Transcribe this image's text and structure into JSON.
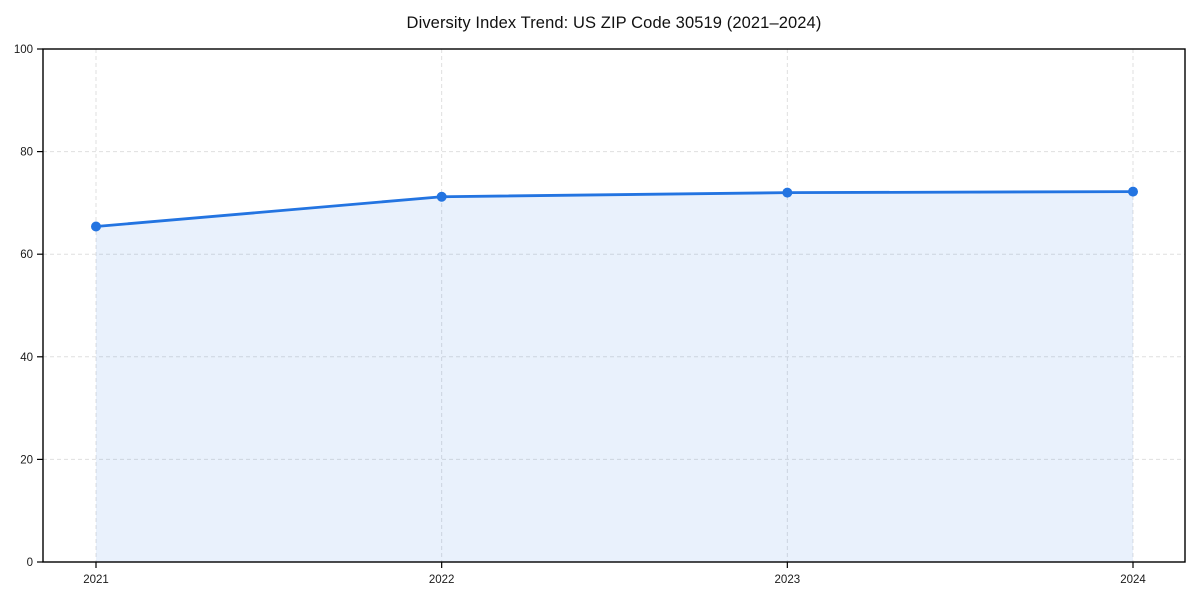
{
  "title": "Diversity Index Trend: US ZIP Code 30519 (2021–2024)",
  "colors": {
    "line": "#2374e1",
    "marker": "#2374e1",
    "area_fill": "rgba(36,116,229,0.10)",
    "grid": "#dfdfdf",
    "axis": "#000000",
    "text": "#1a1a1a",
    "background": "#ffffff"
  },
  "chart_data": {
    "type": "line",
    "title": "Diversity Index Trend: US ZIP Code 30519 (2021–2024)",
    "series_name": "Diversity Index",
    "categories": [
      "2021",
      "2022",
      "2023",
      "2024"
    ],
    "values": [
      65.4,
      71.2,
      72.0,
      72.2
    ],
    "xlabel": "",
    "ylabel": "",
    "ylim": [
      0,
      100
    ],
    "yticks": [
      0,
      20,
      40,
      60,
      80,
      100
    ],
    "grid": true,
    "grid_style": "dashed",
    "area_fill": true,
    "markers": true,
    "legend_position": "none"
  }
}
